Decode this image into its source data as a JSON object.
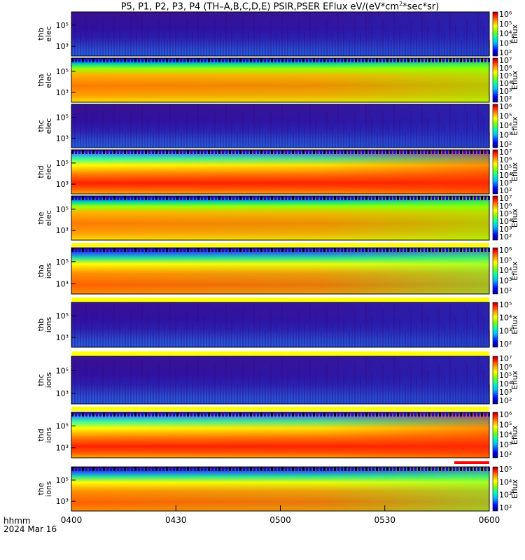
{
  "title_prefix": "P5, P1, P2, P3, P4 (TH–A,B,C,D,E) PSIR,PSER EFlux eV/(eV*cm",
  "title_sup": "2",
  "title_suffix": "*sec*sr)",
  "footer": {
    "line1": "hhmm",
    "line2": "2024 Mar 16"
  },
  "colors": {
    "jet": [
      "#000080",
      "#0000ff",
      "#00bfff",
      "#00ffb0",
      "#80ff00",
      "#ffff00",
      "#ff8000",
      "#ff0000",
      "#800000"
    ],
    "gap_bar": "#ffff00",
    "flag_bar": "#ff0000"
  },
  "chart_data": {
    "type": "heatmap",
    "x_ticks": [
      "0400",
      "0430",
      "0500",
      "0530",
      "0600"
    ],
    "colorbar_label": "Eflux",
    "panels": [
      {
        "probe": "thb",
        "species": "elec",
        "label1": "thb",
        "label2": "elec",
        "y_ticks": [
          "10⁵",
          "10³"
        ],
        "cbar": [
          "10⁶",
          "10⁵",
          "10⁴",
          "10³",
          "10²"
        ],
        "kind": "dim"
      },
      {
        "probe": "tha",
        "species": "elec",
        "label1": "tha",
        "label2": "elec",
        "y_ticks": [
          "10⁵",
          "10³"
        ],
        "cbar": [
          "10⁷",
          "10⁶",
          "10⁵",
          "10⁴",
          "10³",
          "10²"
        ],
        "kind": "hot"
      },
      {
        "probe": "thc",
        "species": "elec",
        "label1": "thc",
        "label2": "elec",
        "y_ticks": [
          "10⁵",
          "10³"
        ],
        "cbar": [
          "10⁶",
          "10⁵",
          "10⁴",
          "10³",
          "10²"
        ],
        "kind": "dim"
      },
      {
        "probe": "thd",
        "species": "elec",
        "label1": "thd",
        "label2": "elec",
        "y_ticks": [
          "10⁵",
          "10³"
        ],
        "cbar": [
          "10⁷",
          "10⁶",
          "10⁵",
          "10⁴",
          "10³",
          "10²"
        ],
        "kind": "dip"
      },
      {
        "probe": "the",
        "species": "elec",
        "label1": "the",
        "label2": "elec",
        "y_ticks": [
          "10⁵",
          "10³"
        ],
        "cbar": [
          "10⁷",
          "10⁶",
          "10⁵",
          "10⁴",
          "10³",
          "10²"
        ],
        "kind": "hot"
      },
      {
        "probe": "tha",
        "species": "ions",
        "label1": "tha",
        "label2": "ions",
        "y_ticks": [
          "10⁵",
          "10³"
        ],
        "cbar": [
          "10⁶",
          "10⁵",
          "10⁴",
          "10³",
          "10²"
        ],
        "kind": "ion"
      },
      {
        "probe": "thb",
        "species": "ions",
        "label1": "thb",
        "label2": "ions",
        "y_ticks": [
          "10⁵",
          "10³"
        ],
        "cbar": [
          "10⁵",
          "10⁴",
          "10³",
          "10²"
        ],
        "kind": "dim"
      },
      {
        "probe": "thc",
        "species": "ions",
        "label1": "thc",
        "label2": "ions",
        "y_ticks": [
          "10⁵",
          "10³"
        ],
        "cbar": [
          "10⁷",
          "10⁶",
          "10⁵",
          "10⁴",
          "10³",
          "10²"
        ],
        "kind": "dim"
      },
      {
        "probe": "thd",
        "species": "ions",
        "label1": "thd",
        "label2": "ions",
        "y_ticks": [
          "10⁵",
          "10³"
        ],
        "cbar": [
          "10⁶",
          "10⁵",
          "10⁴",
          "10³",
          "10²"
        ],
        "kind": "dip"
      },
      {
        "probe": "the",
        "species": "ions",
        "label1": "the",
        "label2": "ions",
        "y_ticks": [
          "10⁵",
          "10³"
        ],
        "cbar": [
          "10⁵",
          "10⁴",
          "10³",
          "10²"
        ],
        "kind": "ion"
      }
    ]
  }
}
